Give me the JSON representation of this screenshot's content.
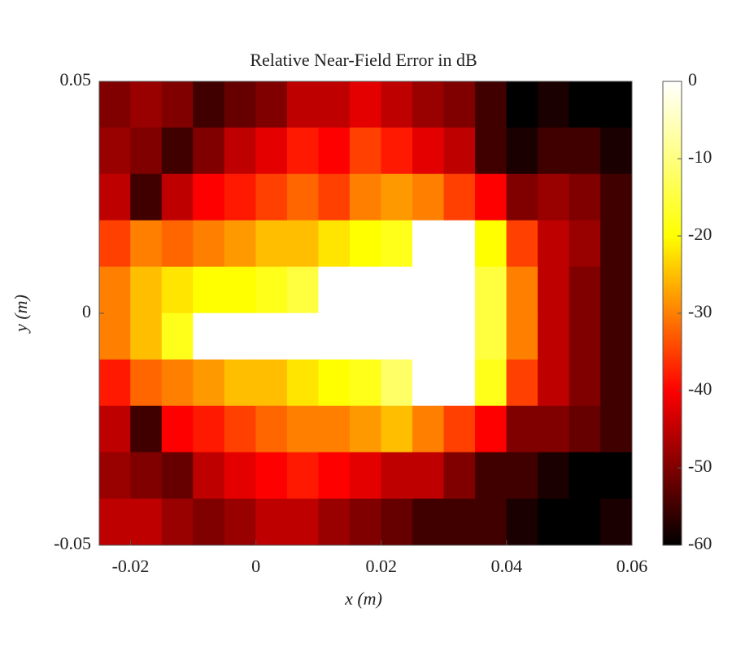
{
  "chart_data": {
    "type": "heatmap",
    "title": "Relative Near-Field Error in dB",
    "x_label": "x (m)",
    "y_label": "y (m)",
    "xlim": [
      -0.025,
      0.06
    ],
    "ylim": [
      -0.05,
      0.05
    ],
    "xticks": [
      -0.02,
      0,
      0.02,
      0.04,
      0.06
    ],
    "yticks": [
      -0.05,
      0,
      0.05
    ],
    "clim": [
      -60,
      0
    ],
    "cticks": [
      0,
      -10,
      -20,
      -30,
      -40,
      -50,
      -60
    ],
    "colormap": [
      "#000000",
      "#ff0000",
      "#ffff00",
      "#ffffff"
    ],
    "x": [
      -0.0225,
      -0.0175,
      -0.0125,
      -0.0075,
      -0.0025,
      0.0025,
      0.0075,
      0.0125,
      0.0175,
      0.0225,
      0.0275,
      0.0325,
      0.0375,
      0.0425,
      0.0475,
      0.0525,
      0.0575
    ],
    "y": [
      0.045,
      0.035,
      0.025,
      0.015,
      0.005,
      -0.005,
      -0.015,
      -0.025,
      -0.035,
      -0.045
    ],
    "z": [
      [
        -50,
        -48,
        -50,
        -55,
        -52,
        -50,
        -45,
        -45,
        -42,
        -45,
        -48,
        -50,
        -55,
        -60,
        -58,
        -60,
        -60
      ],
      [
        -48,
        -50,
        -55,
        -50,
        -45,
        -42,
        -38,
        -40,
        -35,
        -38,
        -42,
        -45,
        -55,
        -58,
        -55,
        -55,
        -58
      ],
      [
        -45,
        -55,
        -45,
        -40,
        -38,
        -35,
        -32,
        -35,
        -30,
        -28,
        -30,
        -35,
        -40,
        -50,
        -48,
        -50,
        -55
      ],
      [
        -35,
        -30,
        -32,
        -30,
        -28,
        -25,
        -25,
        -22,
        -20,
        -18,
        0,
        0,
        -20,
        -35,
        -45,
        -48,
        -55
      ],
      [
        -30,
        -25,
        -22,
        -20,
        -20,
        -18,
        -15,
        0,
        0,
        0,
        0,
        0,
        -15,
        -30,
        -45,
        -50,
        -55
      ],
      [
        -30,
        -25,
        -18,
        0,
        0,
        0,
        0,
        0,
        0,
        0,
        0,
        0,
        -15,
        -30,
        -45,
        -50,
        -55
      ],
      [
        -38,
        -32,
        -30,
        -28,
        -25,
        -25,
        -22,
        -20,
        -18,
        -12,
        0,
        0,
        -18,
        -35,
        -45,
        -50,
        -55
      ],
      [
        -45,
        -55,
        -40,
        -38,
        -35,
        -32,
        -30,
        -30,
        -28,
        -25,
        -30,
        -35,
        -40,
        -50,
        -50,
        -52,
        -55
      ],
      [
        -48,
        -50,
        -52,
        -45,
        -42,
        -40,
        -38,
        -40,
        -42,
        -45,
        -45,
        -50,
        -55,
        -55,
        -58,
        -60,
        -60
      ],
      [
        -45,
        -45,
        -48,
        -50,
        -48,
        -45,
        -45,
        -48,
        -50,
        -52,
        -55,
        -55,
        -55,
        -58,
        -60,
        -60,
        -58
      ]
    ]
  }
}
